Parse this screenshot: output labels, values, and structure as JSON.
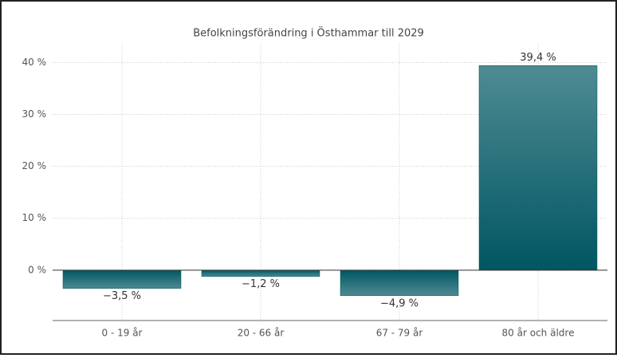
{
  "chart_data": {
    "type": "bar",
    "title": "Befolkningsförändring i Östhammar till 2029",
    "categories": [
      "0 - 19 år",
      "20 - 66 år",
      "67 - 79 år",
      "80 år och äldre"
    ],
    "values": [
      -3.5,
      -1.2,
      -4.9,
      39.4
    ],
    "value_labels": [
      "−3,5 %",
      "−1,2 %",
      "−4,9 %",
      "39,4 %"
    ],
    "color": "#005662",
    "ylim": [
      -9.7,
      43.6
    ],
    "yticks": [
      {
        "value": 0,
        "label": "0 %"
      },
      {
        "value": 10,
        "label": "10 %"
      },
      {
        "value": 20,
        "label": "20 %"
      },
      {
        "value": 30,
        "label": "30 %"
      },
      {
        "value": 40,
        "label": "40 %"
      }
    ],
    "grid": true
  }
}
